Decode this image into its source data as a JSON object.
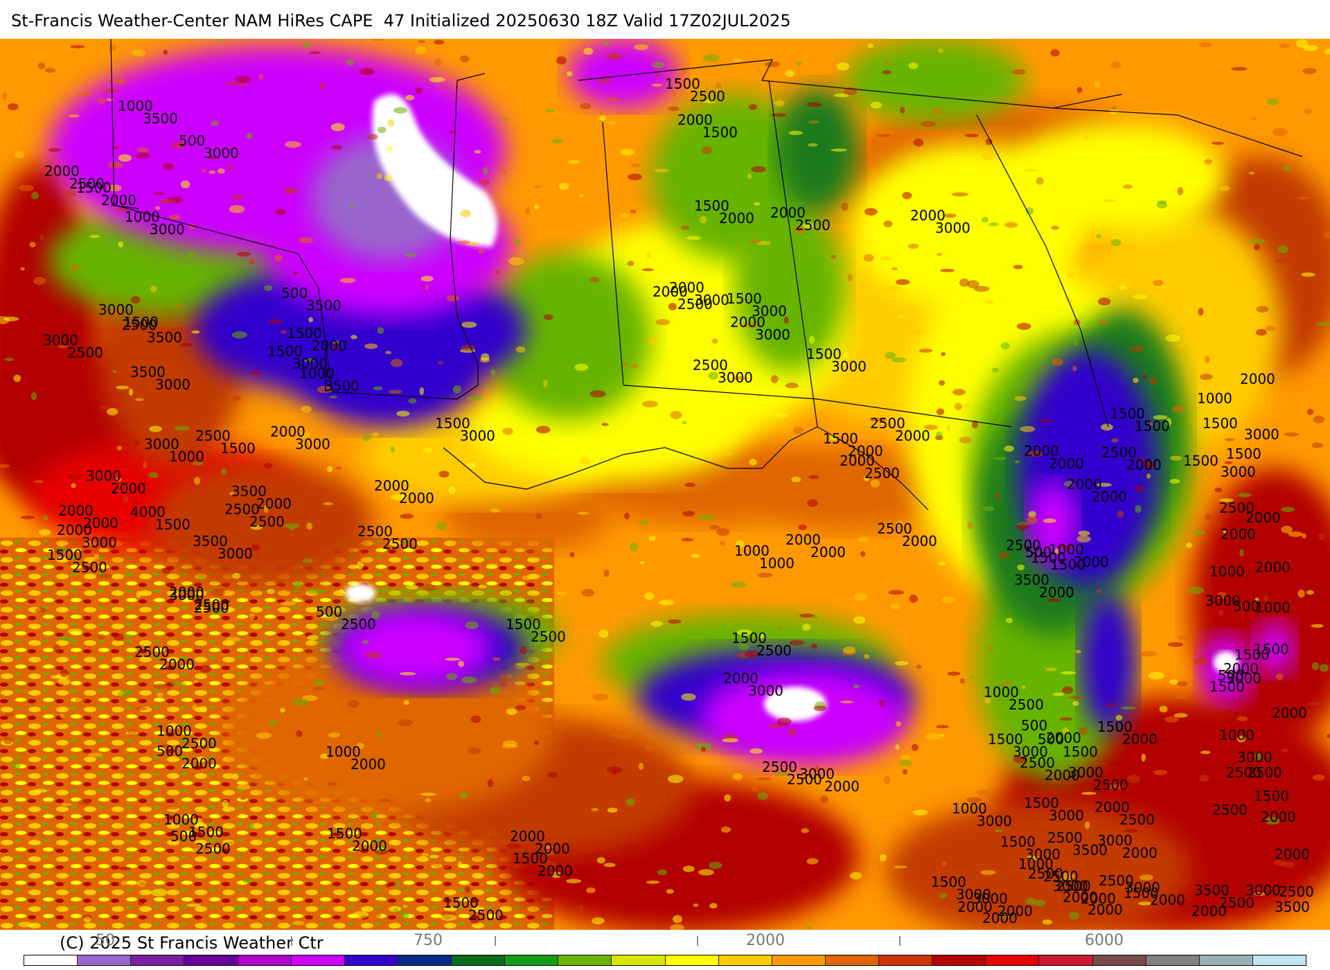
{
  "title": "St-Francis Weather-Center NAM HiRes CAPE  47 Initialized 20250630 18Z Valid 17Z02JUL2025",
  "copyright": "(C) 2025 St Francis Weather Ctr",
  "colorbar": {
    "tick_labels": [
      "50",
      "750",
      "2000",
      "6000"
    ],
    "colors": [
      "#ffffff",
      "#9966cc",
      "#7a1fa2",
      "#660099",
      "#b300cc",
      "#cc00ff",
      "#3300cc",
      "#0a2a88",
      "#0a6b1a",
      "#169c16",
      "#6ab300",
      "#d8e600",
      "#ffff00",
      "#ffcc00",
      "#ff9900",
      "#e06600",
      "#cc3300",
      "#b30000",
      "#e60000",
      "#cc1a33",
      "#7a4a4a",
      "#808080",
      "#9ab0b8",
      "#bfe6f0"
    ]
  },
  "map": {
    "colors": {
      "purple_low": "#cc00ff",
      "lavender": "#9966cc",
      "blue": "#3300cc",
      "dark_green": "#1a7a1a",
      "green": "#66b300",
      "yellow": "#ffff00",
      "gold": "#ffcc00",
      "orange": "#ff9900",
      "dark_orange": "#e06600",
      "rust": "#c23a00",
      "red": "#b30000",
      "bright_red": "#e60000"
    },
    "contour_labels": [
      "1000",
      "500",
      "2000",
      "1500",
      "1000",
      "3000",
      "2500",
      "3000",
      "3500",
      "500",
      "1500",
      "1000",
      "2000",
      "2500",
      "3000",
      "2000",
      "3000",
      "4000",
      "3500",
      "2500",
      "2000",
      "1500",
      "3500",
      "3000",
      "2500",
      "1000",
      "500",
      "1000",
      "500",
      "1500",
      "500",
      "1000",
      "1500",
      "2000",
      "1500",
      "1500",
      "2000",
      "2500",
      "2000",
      "1500",
      "1500",
      "1500",
      "2000",
      "1500",
      "2000",
      "2000",
      "1500",
      "2000",
      "2500",
      "2000",
      "1500",
      "2000",
      "2500",
      "2000",
      "1500",
      "2000",
      "1000",
      "1500",
      "2000",
      "2500",
      "3000",
      "2500",
      "2000",
      "2500",
      "3500",
      "2000",
      "1500",
      "2500",
      "1000",
      "500",
      "1500",
      "1000",
      "500",
      "1500",
      "1000",
      "1500",
      "500",
      "2500",
      "3000",
      "1500",
      "2500",
      "2000",
      "2500",
      "3000",
      "2500",
      "2000",
      "1000",
      "1500",
      "2000",
      "3000",
      "2500",
      "3000",
      "3500",
      "2500",
      "2000",
      "2500",
      "3000",
      "2000",
      "3000",
      "1500",
      "1000",
      "500",
      "3000",
      "2000",
      "2500",
      "3000",
      "1500",
      "1500",
      "1000",
      "2000",
      "3000",
      "1500",
      "2000",
      "1000",
      "500",
      "1500",
      "2000",
      "1000",
      "1500",
      "2000",
      "2500",
      "1500",
      "2000",
      "2000",
      "2500",
      "3000",
      "3500",
      "3500",
      "3000",
      "2500",
      "2000",
      "3000",
      "1500",
      "3500",
      "2500",
      "3000",
      "3500",
      "3000",
      "3500",
      "3000",
      "1500",
      "1000",
      "2000",
      "2000",
      "1500",
      "2000",
      "2500",
      "3000",
      "2500",
      "3000",
      "2500",
      "2000",
      "2500",
      "2000",
      "1500",
      "2500",
      "2000",
      "2500",
      "2000",
      "2000",
      "2500",
      "2500",
      "3000",
      "2000",
      "2500",
      "2000",
      "2500",
      "2000",
      "2500",
      "1500",
      "2000",
      "3000",
      "2500",
      "3000",
      "3000",
      "3000",
      "2500",
      "3000",
      "3000",
      "2000",
      "2500",
      "2000",
      "2000",
      "1000",
      "2500",
      "3000",
      "2500",
      "2000",
      "2000",
      "2000",
      "1500",
      "2000",
      "2000",
      "1500",
      "2000",
      "2000",
      "1500",
      "2000",
      "2500",
      "2000",
      "3000",
      "3000",
      "3000",
      "1500",
      "2000",
      "2500",
      "3000",
      "3500",
      "2500",
      "3000",
      "2000",
      "2000",
      "2000",
      "2500",
      "3000",
      "2000",
      "2000",
      "1500",
      "2000",
      "2500"
    ]
  }
}
